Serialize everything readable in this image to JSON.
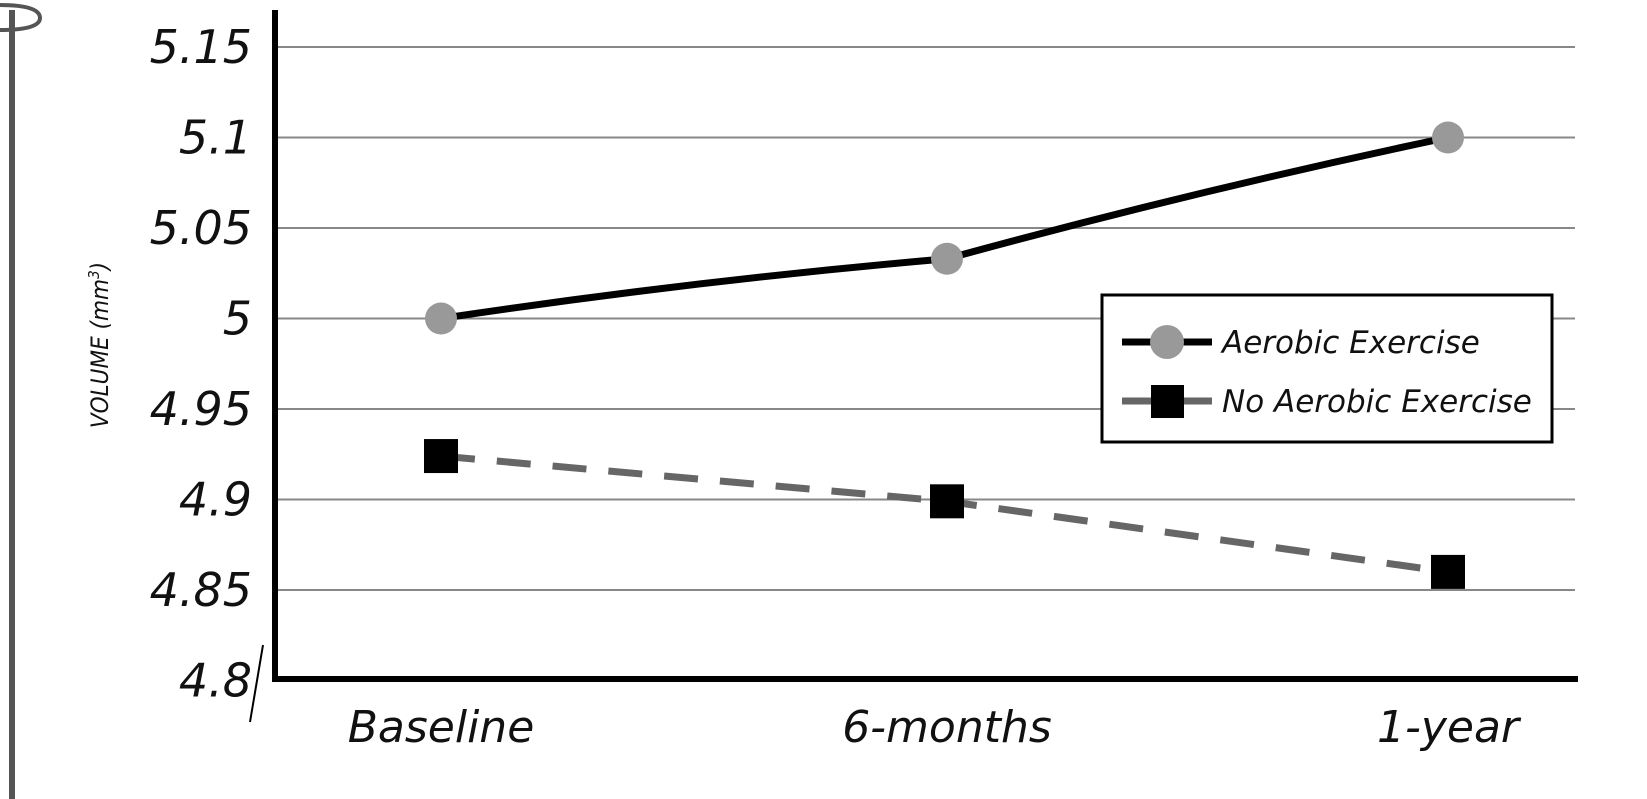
{
  "colors": {
    "aerobic_line": "#000000",
    "aerobic_marker": "#999999",
    "no_aerobic_line": "#666666",
    "no_aerobic_marker": "#000000",
    "grid": "#888888",
    "axis": "#000000"
  },
  "chart_data": {
    "type": "line",
    "categories": [
      "Baseline",
      "6-months",
      "1-year"
    ],
    "ylabel": "VOLUME (mm",
    "ylabel_sup": "3",
    "ylabel_close": ")",
    "xlabel": "",
    "ylim": [
      4.8,
      5.17
    ],
    "yticks": [
      "5.15",
      "5.1",
      "5.05",
      "5",
      "4.95",
      "4.9",
      "4.85",
      "4.8"
    ],
    "ytick_values": [
      5.15,
      5.1,
      5.05,
      5.0,
      4.95,
      4.9,
      4.85,
      4.8
    ],
    "grid": true,
    "legend_position": "right",
    "series": [
      {
        "name": "Aerobic Exercise",
        "values": [
          5.0,
          5.033,
          5.1
        ],
        "style": "solid",
        "marker": "circle"
      },
      {
        "name": "No Aerobic Exercise",
        "values": [
          4.924,
          4.899,
          4.86
        ],
        "style": "dashed",
        "marker": "square"
      }
    ]
  }
}
